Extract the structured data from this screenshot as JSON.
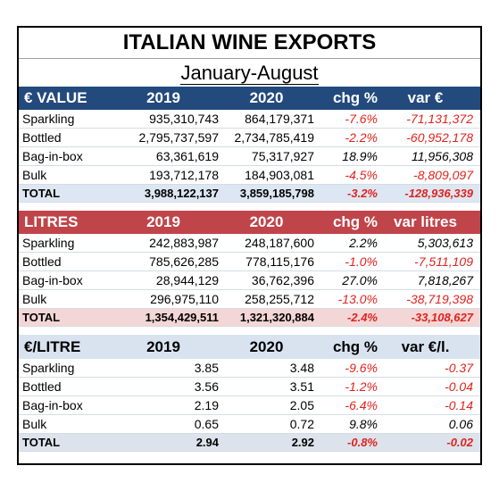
{
  "title": "ITALIAN WINE EXPORTS",
  "subtitle": "January-August",
  "sections": [
    {
      "header": [
        "€ VALUE",
        "2019",
        "2020",
        "chg %",
        "var €"
      ],
      "rows": [
        [
          "Sparkling",
          "935,310,743",
          "864,179,371",
          "-7.6%",
          "-71,131,372"
        ],
        [
          "Bottled",
          "2,795,737,597",
          "2,734,785,419",
          "-2.2%",
          "-60,952,178"
        ],
        [
          "Bag-in-box",
          "63,361,619",
          "75,317,927",
          "18.9%",
          "11,956,308"
        ],
        [
          "Bulk",
          "193,712,178",
          "184,903,081",
          "-4.5%",
          "-8,809,097"
        ]
      ],
      "total": [
        "TOTAL",
        "3,988,122,137",
        "3,859,185,798",
        "-3.2%",
        "-128,936,339"
      ]
    },
    {
      "header": [
        "LITRES",
        "2019",
        "2020",
        "chg %",
        "var litres"
      ],
      "rows": [
        [
          "Sparkling",
          "242,883,987",
          "248,187,600",
          "2.2%",
          "5,303,613"
        ],
        [
          "Bottled",
          "785,626,285",
          "778,115,176",
          "-1.0%",
          "-7,511,109"
        ],
        [
          "Bag-in-box",
          "28,944,129",
          "36,762,396",
          "27.0%",
          "7,818,267"
        ],
        [
          "Bulk",
          "296,975,110",
          "258,255,712",
          "-13.0%",
          "-38,719,398"
        ]
      ],
      "total": [
        "TOTAL",
        "1,354,429,511",
        "1,321,320,884",
        "-2.4%",
        "-33,108,627"
      ]
    },
    {
      "header": [
        "€/LITRE",
        "2019",
        "2020",
        "chg %",
        "var €/l."
      ],
      "rows": [
        [
          "Sparkling",
          "3.85",
          "3.48",
          "-9.6%",
          "-0.37"
        ],
        [
          "Bottled",
          "3.56",
          "3.51",
          "-1.2%",
          "-0.04"
        ],
        [
          "Bag-in-box",
          "2.19",
          "2.05",
          "-6.4%",
          "-0.14"
        ],
        [
          "Bulk",
          "0.65",
          "0.72",
          "9.8%",
          "0.06"
        ]
      ],
      "total": [
        "TOTAL",
        "2.94",
        "2.92",
        "-0.8%",
        "-0.02"
      ]
    }
  ],
  "colors": {
    "value_header": "#234a7d",
    "litres_header": "#c0454a",
    "litre_price_header": "#d9e3f0",
    "negative": "#e0231e"
  }
}
